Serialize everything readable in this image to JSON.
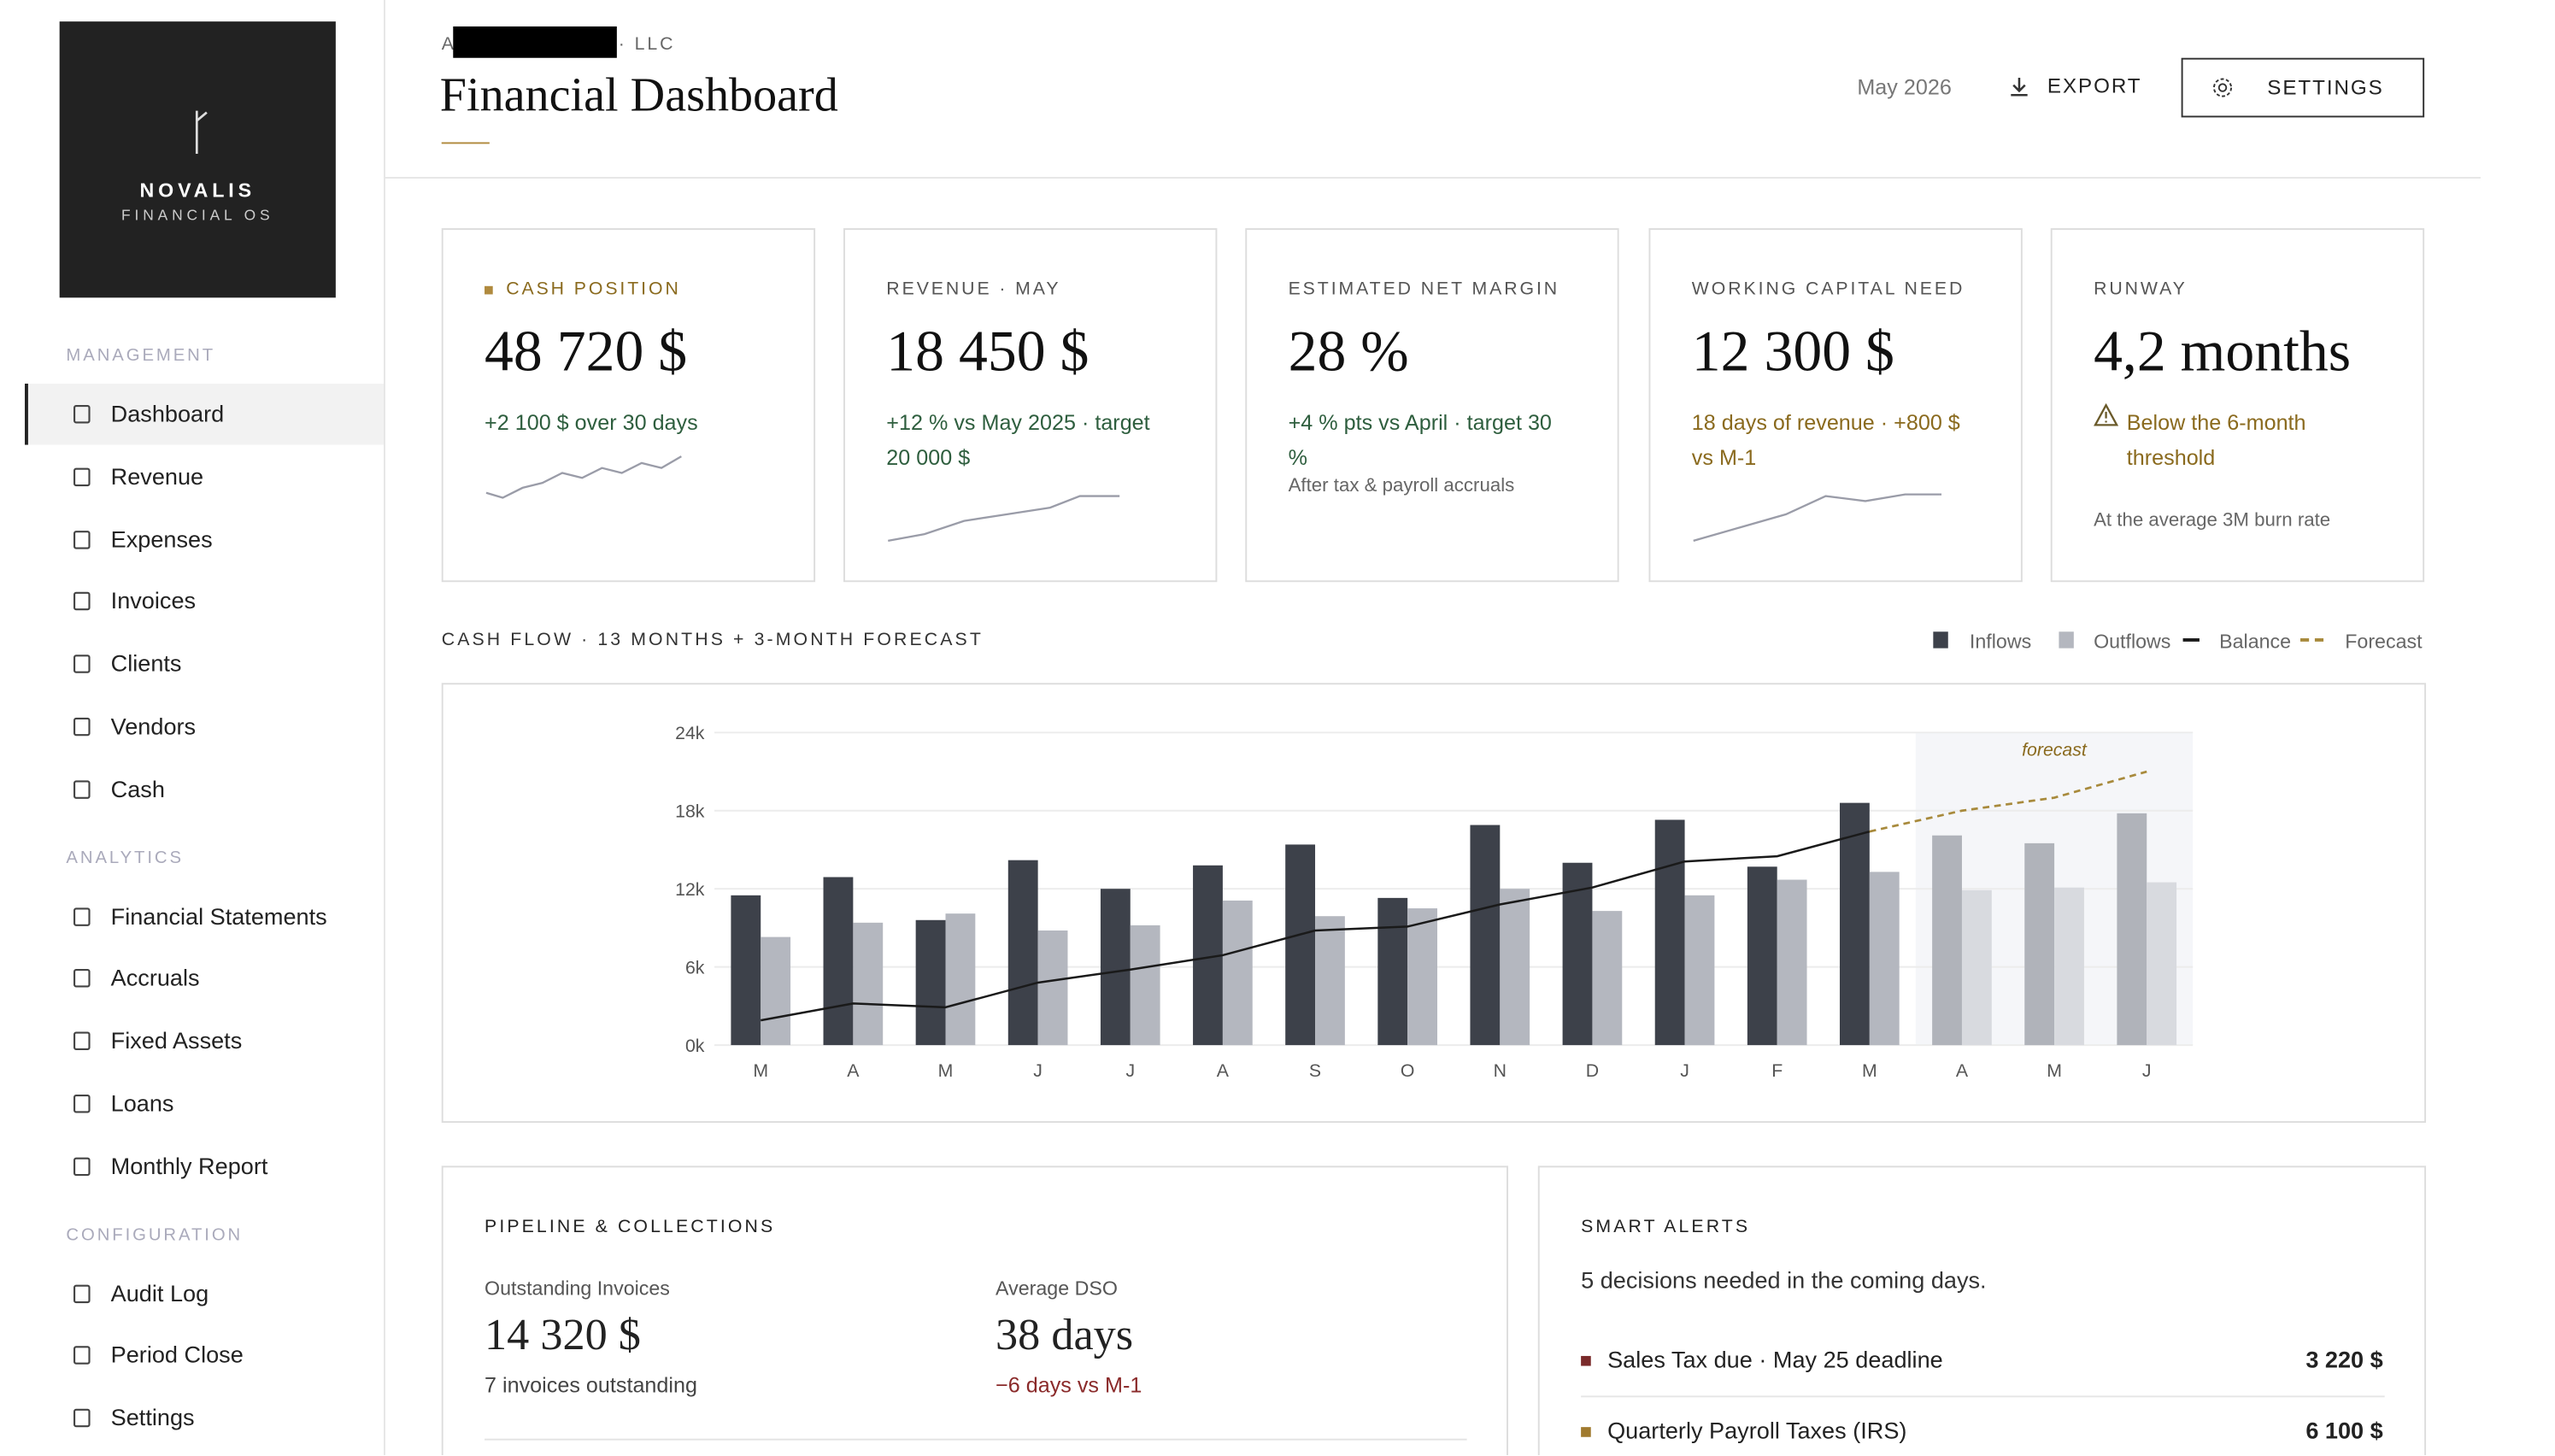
{
  "sidebar": {
    "brand": "NOVALIS",
    "brand_sub": "FINANCIAL OS",
    "sections": [
      {
        "title": "MANAGEMENT",
        "items": [
          "Dashboard",
          "Revenue",
          "Expenses",
          "Invoices",
          "Clients",
          "Vendors",
          "Cash"
        ]
      },
      {
        "title": "ANALYTICS",
        "items": [
          "Financial Statements",
          "Accruals",
          "Fixed Assets",
          "Loans",
          "Monthly Report"
        ]
      },
      {
        "title": "CONFIGURATION",
        "items": [
          "Audit Log",
          "Period Close",
          "Settings"
        ]
      }
    ]
  },
  "header": {
    "company": "A",
    "company_suffix": "· LLC",
    "title": "Financial Dashboard",
    "period": "May 2026",
    "export": "EXPORT",
    "settings": "SETTINGS"
  },
  "kpis": [
    {
      "label": "CASH POSITION",
      "value": "48 720 $",
      "detail": "+2 100 $ over 30 days"
    },
    {
      "label": "REVENUE · MAY",
      "value": "18 450 $",
      "detail": "+12 % vs May 2025 · target 20 000 $"
    },
    {
      "label": "ESTIMATED NET MARGIN",
      "value": "28 %",
      "detail": "+4 % pts vs April · target 30 %",
      "note": "After tax & payroll accruals"
    },
    {
      "label": "WORKING CAPITAL NEED",
      "value": "12 300 $",
      "detail": "18 days of revenue · +800 $ vs M-1"
    },
    {
      "label": "RUNWAY",
      "value": "4,2 months",
      "detail": "Below the 6-month threshold",
      "note": "At the average 3M burn rate"
    }
  ],
  "chart_data": {
    "type": "bar",
    "title": "CASH FLOW · 13 MONTHS + 3-MONTH FORECAST",
    "annotation": "forecast",
    "categories": [
      "M",
      "A",
      "M",
      "J",
      "J",
      "A",
      "S",
      "O",
      "N",
      "D",
      "J",
      "F",
      "M",
      "A",
      "M",
      "J"
    ],
    "series": [
      {
        "name": "Inflows",
        "color": "#3d414a",
        "forecast_color": "#b0b3ba",
        "values": [
          11500,
          12900,
          9600,
          14200,
          12000,
          13800,
          15400,
          11300,
          16900,
          14000,
          17300,
          13700,
          18600,
          16100,
          15500,
          17800
        ]
      },
      {
        "name": "Outflows",
        "color": "#b4b7bf",
        "forecast_color": "#d8dadf",
        "values": [
          8300,
          9400,
          10100,
          8800,
          9200,
          11100,
          9900,
          10500,
          12000,
          10300,
          11500,
          12700,
          13300,
          11900,
          12100,
          12500
        ]
      },
      {
        "name": "Balance",
        "type": "line",
        "color": "#1a1a1a",
        "values": [
          1900,
          3200,
          2900,
          4800,
          5800,
          6900,
          8800,
          9100,
          10800,
          12100,
          14100,
          14500,
          16400,
          null,
          null,
          null
        ]
      },
      {
        "name": "Forecast",
        "type": "line",
        "dashed": true,
        "color": "#a88a3c",
        "values": [
          null,
          null,
          null,
          null,
          null,
          null,
          null,
          null,
          null,
          null,
          null,
          null,
          16400,
          18000,
          19000,
          21000
        ]
      }
    ],
    "ylim": [
      0,
      24000
    ],
    "yticks": [
      {
        "value": 0,
        "label": "0k"
      },
      {
        "value": 6000,
        "label": "6k"
      },
      {
        "value": 12000,
        "label": "12k"
      },
      {
        "value": 18000,
        "label": "18k"
      },
      {
        "value": 24000,
        "label": "24k"
      }
    ],
    "grid": true
  },
  "pipeline": {
    "title": "PIPELINE & COLLECTIONS",
    "outstanding_label": "Outstanding Invoices",
    "outstanding_value": "14 320 $",
    "outstanding_note": "7 invoices outstanding",
    "dso_label": "Average DSO",
    "dso_value": "38 days",
    "dso_note": "−6 days vs M-1"
  },
  "alerts": {
    "title": "SMART ALERTS",
    "subtitle": "5 decisions needed in the coming days.",
    "items": [
      {
        "text": "Sales Tax due · May 25 deadline",
        "amount": "3 220 $",
        "color": "#7a2a2a"
      },
      {
        "text": "Quarterly Payroll Taxes (IRS)",
        "amount": "6 100 $",
        "color": "#a07a2e"
      }
    ]
  }
}
